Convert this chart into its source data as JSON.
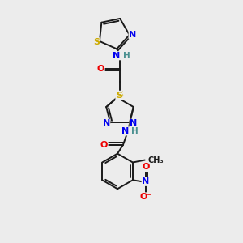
{
  "bg_color": "#ececec",
  "bond_color": "#1a1a1a",
  "atom_colors": {
    "N": "#0000ee",
    "O": "#ee0000",
    "S": "#ccaa00",
    "C": "#1a1a1a",
    "H": "#4a9090"
  }
}
